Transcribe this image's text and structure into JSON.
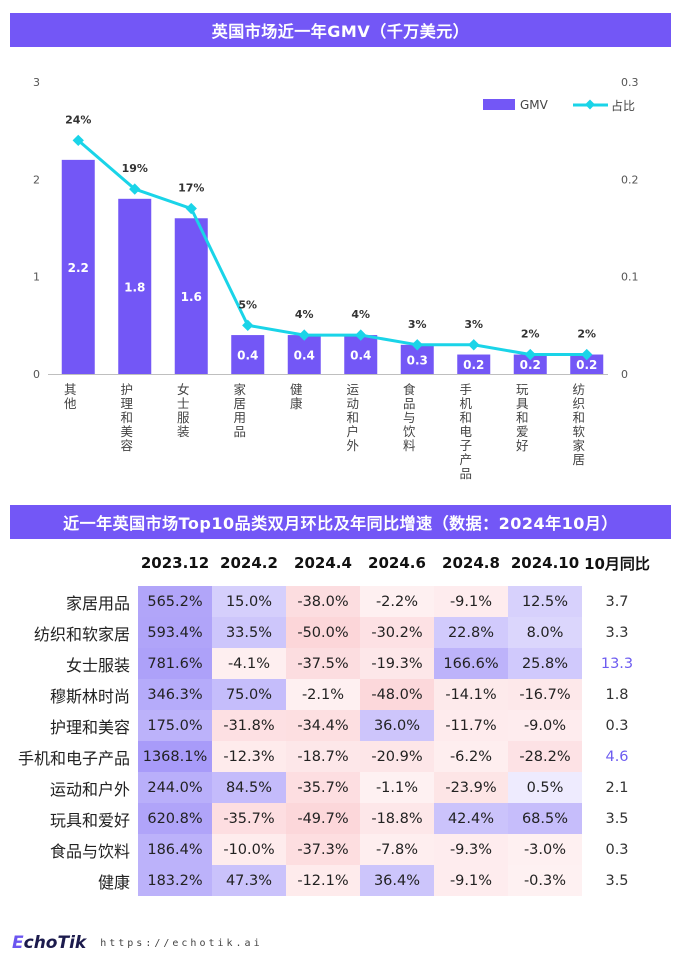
{
  "top_title": "英国市场近一年GMV（千万美元）",
  "table_title": "近一年英国市场Top10品类双月环比及年同比增速（数据：2024年10月）",
  "chart_data": {
    "type": "bar",
    "title": "英国市场近一年GMV（千万美元）",
    "categories": [
      "其他",
      "护理和美容",
      "女士服装",
      "家居用品",
      "健康",
      "运动和户外",
      "食品与饮料",
      "手机和电子产品",
      "玩具和爱好",
      "纺织和软家居"
    ],
    "series": [
      {
        "name": "GMV",
        "type": "bar",
        "axis": "left",
        "values": [
          2.2,
          1.8,
          1.6,
          0.4,
          0.4,
          0.4,
          0.3,
          0.2,
          0.2,
          0.2
        ],
        "labels": [
          "2.2",
          "1.8",
          "1.6",
          "0.4",
          "0.4",
          "0.4",
          "0.3",
          "0.2",
          "0.2",
          "0.2"
        ]
      },
      {
        "name": "占比",
        "type": "line",
        "axis": "right",
        "values": [
          0.24,
          0.19,
          0.17,
          0.05,
          0.04,
          0.04,
          0.03,
          0.03,
          0.02,
          0.02
        ],
        "labels": [
          "24%",
          "19%",
          "17%",
          "5%",
          "4%",
          "4%",
          "3%",
          "3%",
          "2%",
          "2%"
        ]
      }
    ],
    "ylim": [
      0,
      3
    ],
    "y2lim": [
      0,
      0.3
    ],
    "yticks": [
      "0",
      "1",
      "2",
      "3"
    ],
    "y2ticks": [
      "0",
      "0.1",
      "0.2",
      "0.3"
    ],
    "legend": "top-right",
    "grid": false,
    "colors": {
      "bar": "#7357f6",
      "line": "#1ad4e8"
    }
  },
  "table": {
    "type": "table",
    "columns": [
      "2023.12",
      "2024.2",
      "2024.4",
      "2024.6",
      "2024.8",
      "2024.10",
      "10月同比"
    ],
    "rows": [
      {
        "category": "家居用品",
        "values": [
          "565.2%",
          "15.0%",
          "-38.0%",
          "-2.2%",
          "-9.1%",
          "12.5%"
        ],
        "yoy": "3.7"
      },
      {
        "category": "纺织和软家居",
        "values": [
          "593.4%",
          "33.5%",
          "-50.0%",
          "-30.2%",
          "22.8%",
          "8.0%"
        ],
        "yoy": "3.3"
      },
      {
        "category": "女士服装",
        "values": [
          "781.6%",
          "-4.1%",
          "-37.5%",
          "-19.3%",
          "166.6%",
          "25.8%"
        ],
        "yoy": "13.3"
      },
      {
        "category": "穆斯林时尚",
        "values": [
          "346.3%",
          "75.0%",
          "-2.1%",
          "-48.0%",
          "-14.1%",
          "-16.7%"
        ],
        "yoy": "1.8"
      },
      {
        "category": "护理和美容",
        "values": [
          "175.0%",
          "-31.8%",
          "-34.4%",
          "36.0%",
          "-11.7%",
          "-9.0%"
        ],
        "yoy": "0.3"
      },
      {
        "category": "手机和电子产品",
        "values": [
          "1368.1%",
          "-12.3%",
          "-18.7%",
          "-20.9%",
          "-6.2%",
          "-28.2%"
        ],
        "yoy": "4.6"
      },
      {
        "category": "运动和户外",
        "values": [
          "244.0%",
          "84.5%",
          "-35.7%",
          "-1.1%",
          "-23.9%",
          "0.5%"
        ],
        "yoy": "2.1"
      },
      {
        "category": "玩具和爱好",
        "values": [
          "620.8%",
          "-35.7%",
          "-49.7%",
          "-18.8%",
          "42.4%",
          "68.5%"
        ],
        "yoy": "3.5"
      },
      {
        "category": "食品与饮料",
        "values": [
          "186.4%",
          "-10.0%",
          "-37.3%",
          "-7.8%",
          "-9.3%",
          "-3.0%"
        ],
        "yoy": "0.3"
      },
      {
        "category": "健康",
        "values": [
          "183.2%",
          "47.3%",
          "-12.1%",
          "36.4%",
          "-9.1%",
          "-0.3%"
        ],
        "yoy": "3.5"
      }
    ],
    "highlight_yoy": [
      "13.3",
      "4.6"
    ]
  },
  "footer": {
    "logo_prefix": "E",
    "logo_rest": "choTik",
    "url": "https://echotik.ai"
  }
}
